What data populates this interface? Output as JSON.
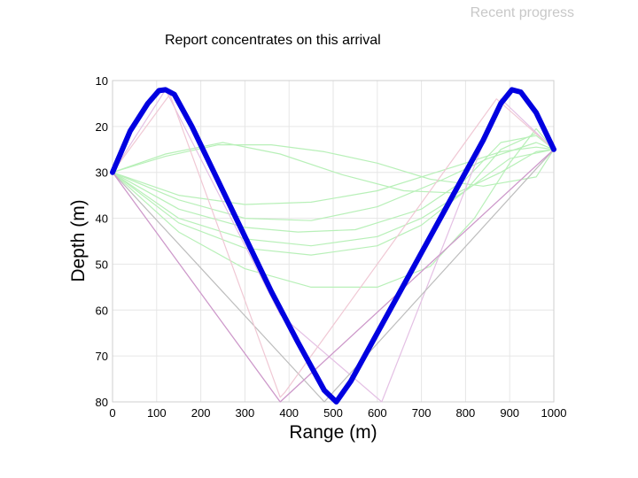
{
  "header": {
    "title": "Recent progress"
  },
  "annotation": {
    "text": "Report concentrates on this arrival"
  },
  "chart_data": {
    "type": "line",
    "title": "",
    "xlabel": "Range (m)",
    "ylabel": "Depth (m)",
    "xlim": [
      0,
      1000
    ],
    "ylim": [
      10,
      80
    ],
    "y_inverted": true,
    "grid": true,
    "xticks": [
      0,
      100,
      200,
      300,
      400,
      500,
      600,
      700,
      800,
      900,
      1000
    ],
    "yticks": [
      10,
      20,
      30,
      40,
      50,
      60,
      70,
      80
    ],
    "series": [
      {
        "color": "#b8f0b8",
        "x": [
          0,
          120,
          240,
          360,
          480,
          600,
          720,
          840,
          960,
          1000
        ],
        "y": [
          30,
          26.5,
          24,
          24,
          25.5,
          28,
          31.5,
          33,
          31,
          25
        ]
      },
      {
        "color": "#b8f0b8",
        "x": [
          0,
          120,
          250,
          380,
          520,
          660,
          780,
          880,
          960,
          1000
        ],
        "y": [
          30,
          26,
          23.5,
          26,
          30.5,
          34,
          34.5,
          30,
          25.5,
          25
        ]
      },
      {
        "color": "#b8f0b8",
        "x": [
          0,
          150,
          300,
          450,
          600,
          750,
          880,
          960,
          1000
        ],
        "y": [
          30,
          35,
          37,
          36.5,
          34,
          29.5,
          25.5,
          24.5,
          25
        ]
      },
      {
        "color": "#b8f0b8",
        "x": [
          0,
          150,
          300,
          450,
          600,
          750,
          850,
          960,
          1000
        ],
        "y": [
          30,
          36,
          40,
          40.5,
          37.5,
          31.5,
          27,
          23.5,
          25
        ]
      },
      {
        "color": "#b8f0b8",
        "x": [
          0,
          150,
          300,
          420,
          550,
          700,
          800,
          880,
          960,
          1000
        ],
        "y": [
          30,
          38,
          42,
          43,
          42.5,
          38,
          31.5,
          23.5,
          22,
          25
        ]
      },
      {
        "color": "#b8f0b8",
        "x": [
          0,
          150,
          300,
          450,
          600,
          700,
          800,
          900,
          1000
        ],
        "y": [
          30,
          40,
          44.5,
          46,
          44,
          40,
          34,
          27,
          25
        ]
      },
      {
        "color": "#b8f0b8",
        "x": [
          0,
          150,
          300,
          450,
          600,
          700,
          800,
          880,
          960,
          1000
        ],
        "y": [
          30,
          41,
          46.5,
          48,
          46,
          41.5,
          34,
          25,
          21.5,
          25
        ]
      },
      {
        "color": "#b8f0b8",
        "x": [
          0,
          150,
          300,
          450,
          600,
          720,
          820,
          900,
          960,
          1000
        ],
        "y": [
          30,
          43,
          51,
          55,
          55,
          50.5,
          40,
          28,
          20.5,
          25
        ]
      },
      {
        "color": "#e4c0e4",
        "x": [
          0,
          120,
          380,
          610,
          880,
          1000
        ],
        "y": [
          30,
          12,
          61,
          80,
          14,
          25
        ]
      },
      {
        "color": "#bdbdbd",
        "x": [
          0,
          480,
          1000
        ],
        "y": [
          30,
          80,
          25
        ]
      },
      {
        "color": "#f0c8d4",
        "x": [
          0,
          380,
          1000
        ],
        "y": [
          30,
          80,
          25
        ]
      },
      {
        "color": "#cc99cc",
        "x": [
          0,
          380,
          1000
        ],
        "y": [
          30,
          80,
          25
        ]
      },
      {
        "color": "#f0c8d4",
        "x": [
          0,
          130,
          380,
          390,
          870,
          1000
        ],
        "y": [
          30,
          13,
          79,
          78,
          14,
          25
        ]
      },
      {
        "color": "#0000e0",
        "highlight": true,
        "x": [
          0,
          40,
          80,
          105,
          120,
          140,
          180,
          240,
          300,
          360,
          420,
          480,
          507,
          540,
          600,
          660,
          720,
          780,
          840,
          880,
          905,
          925,
          960,
          1000
        ],
        "y": [
          30,
          21,
          15,
          12.2,
          12,
          13,
          20,
          32,
          44,
          56,
          67,
          77.5,
          80,
          75.5,
          65,
          54.5,
          44,
          33.5,
          23,
          15,
          12,
          12.5,
          17,
          25
        ]
      }
    ]
  }
}
